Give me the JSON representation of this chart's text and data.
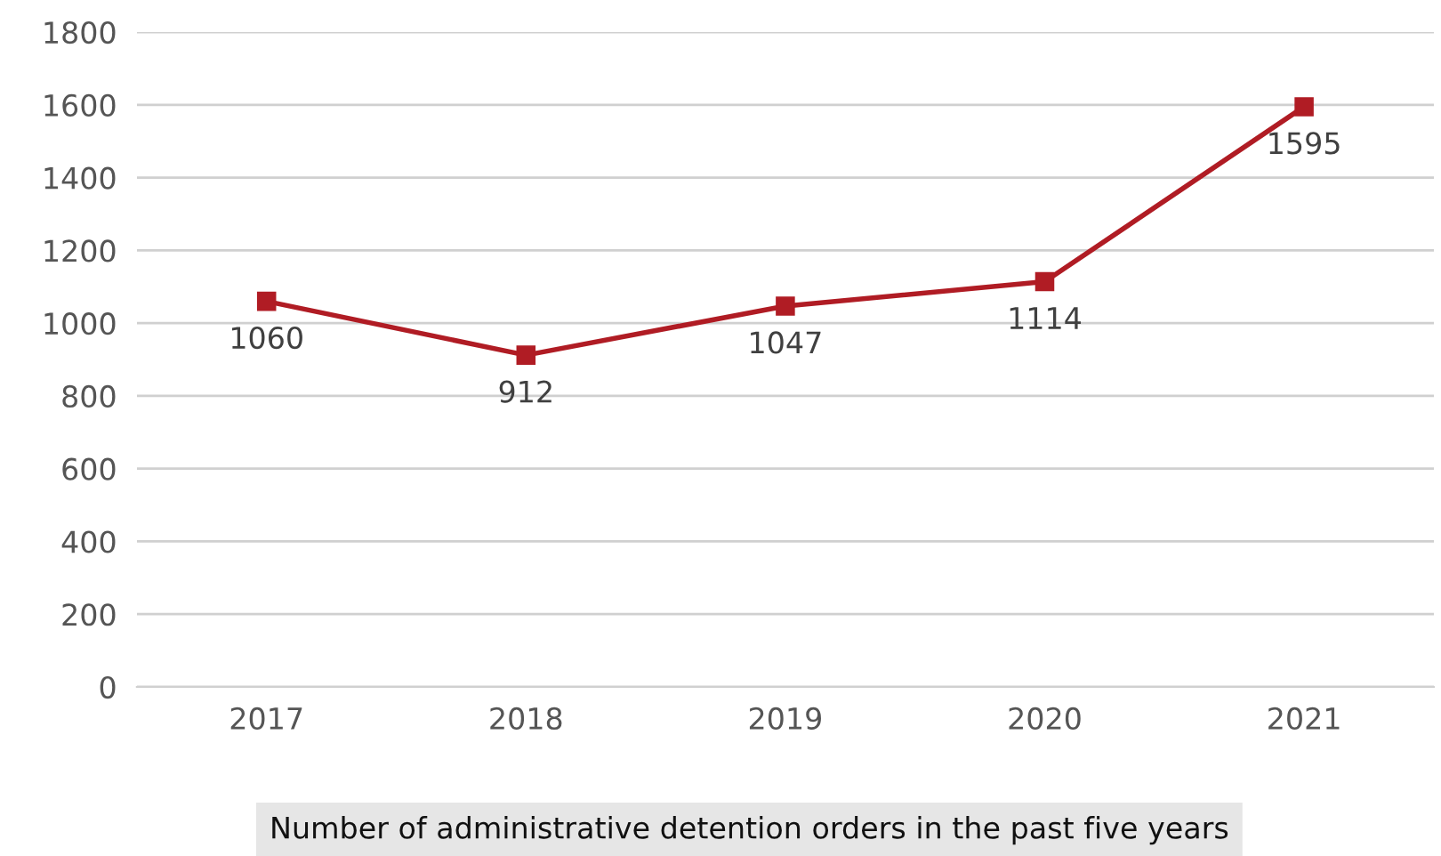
{
  "chart_data": {
    "type": "line",
    "title": "Number of administrative detention orders in the past five years",
    "categories": [
      "2017",
      "2018",
      "2019",
      "2020",
      "2021"
    ],
    "series": [
      {
        "color": "#b01c24",
        "values": [
          1060,
          912,
          1047,
          1114,
          1595
        ]
      }
    ],
    "ylim": [
      0,
      1800
    ],
    "yticks": [
      0,
      200,
      400,
      600,
      800,
      1000,
      1200,
      1400,
      1600,
      1800
    ],
    "grid": "y",
    "marker": "square",
    "line_style": "solid",
    "data_labels": true
  }
}
